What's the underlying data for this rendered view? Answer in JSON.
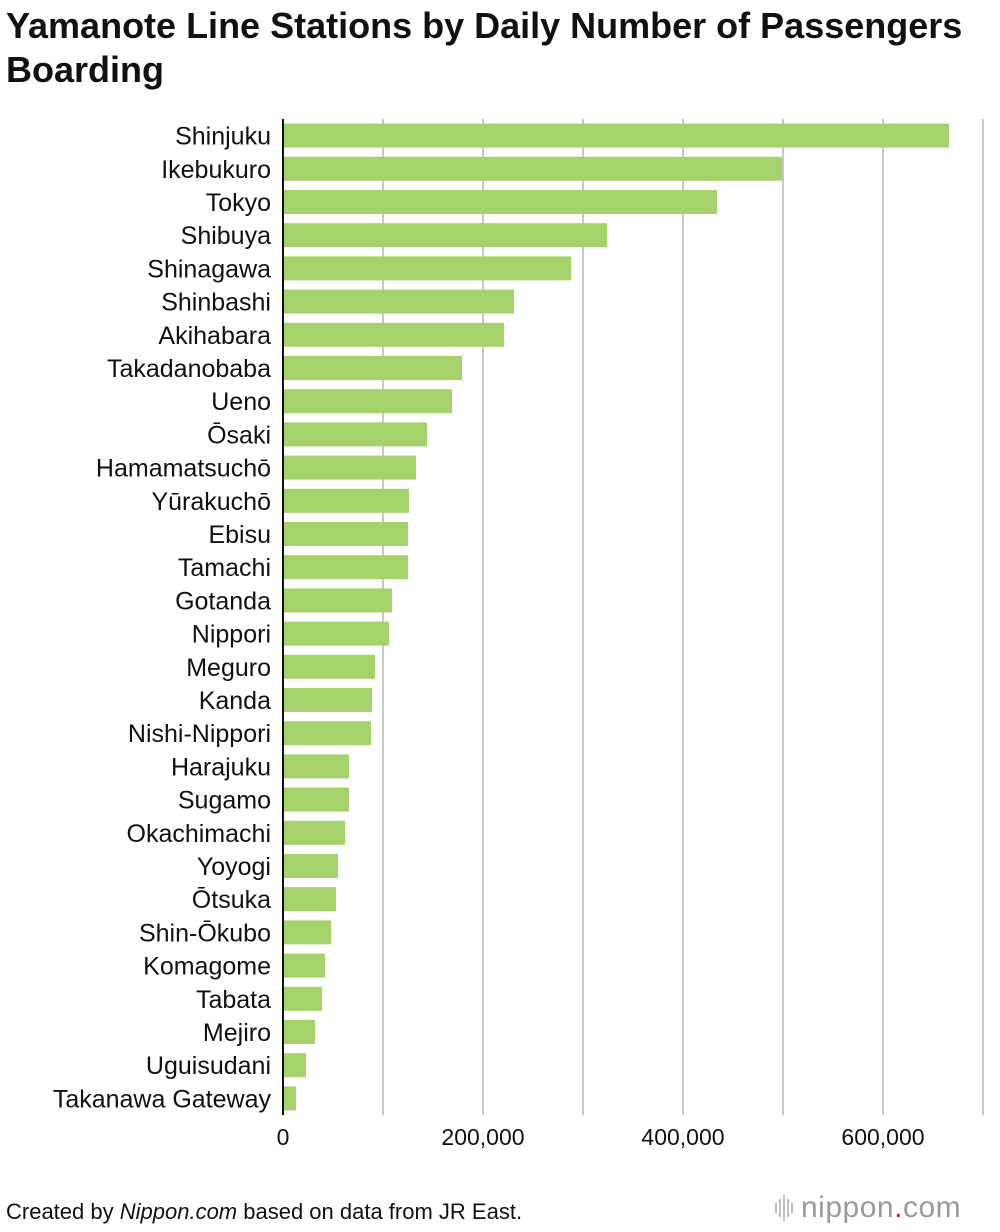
{
  "title": "Yamanote Line Stations by Daily Number of Passengers Boarding",
  "footer": {
    "prefix": "Created by ",
    "source_name": "Nippon.com",
    "suffix": " based on data from JR East."
  },
  "logo": {
    "name_part": "nippon",
    "dot": ".",
    "tld_part": "com"
  },
  "colors": {
    "bar": "#a5d26a",
    "grid": "#c8c8c8",
    "axis": "#111111",
    "logo_dot": "#d0202a"
  },
  "chart_data": {
    "type": "bar",
    "orientation": "horizontal",
    "title": "Yamanote Line Stations by Daily Number of Passengers Boarding",
    "xlabel": "",
    "ylabel": "",
    "xlim": [
      0,
      700000
    ],
    "x_ticks": [
      0,
      200000,
      400000,
      600000
    ],
    "x_tick_labels": [
      "0",
      "200,000",
      "400,000",
      "600,000"
    ],
    "grid": true,
    "categories": [
      "Shinjuku",
      "Ikebukuro",
      "Tokyo",
      "Shibuya",
      "Shinagawa",
      "Shinbashi",
      "Akihabara",
      "Takadanobaba",
      "Ueno",
      "Ōsaki",
      "Hamamatsuchō",
      "Yūrakuchō",
      "Ebisu",
      "Tamachi",
      "Gotanda",
      "Nippori",
      "Meguro",
      "Kanda",
      "Nishi-Nippori",
      "Harajuku",
      "Sugamo",
      "Okachimachi",
      "Yoyogi",
      "Ōtsuka",
      "Shin-Ōkubo",
      "Komagome",
      "Tabata",
      "Mejiro",
      "Uguisudani",
      "Takanawa Gateway"
    ],
    "values": [
      666000,
      499000,
      434000,
      324000,
      288000,
      231000,
      221000,
      179000,
      169000,
      144000,
      133000,
      126000,
      125000,
      125000,
      109000,
      106000,
      92000,
      89000,
      88000,
      66000,
      66000,
      62000,
      55000,
      53000,
      48000,
      42000,
      39000,
      32000,
      23000,
      13000
    ]
  }
}
